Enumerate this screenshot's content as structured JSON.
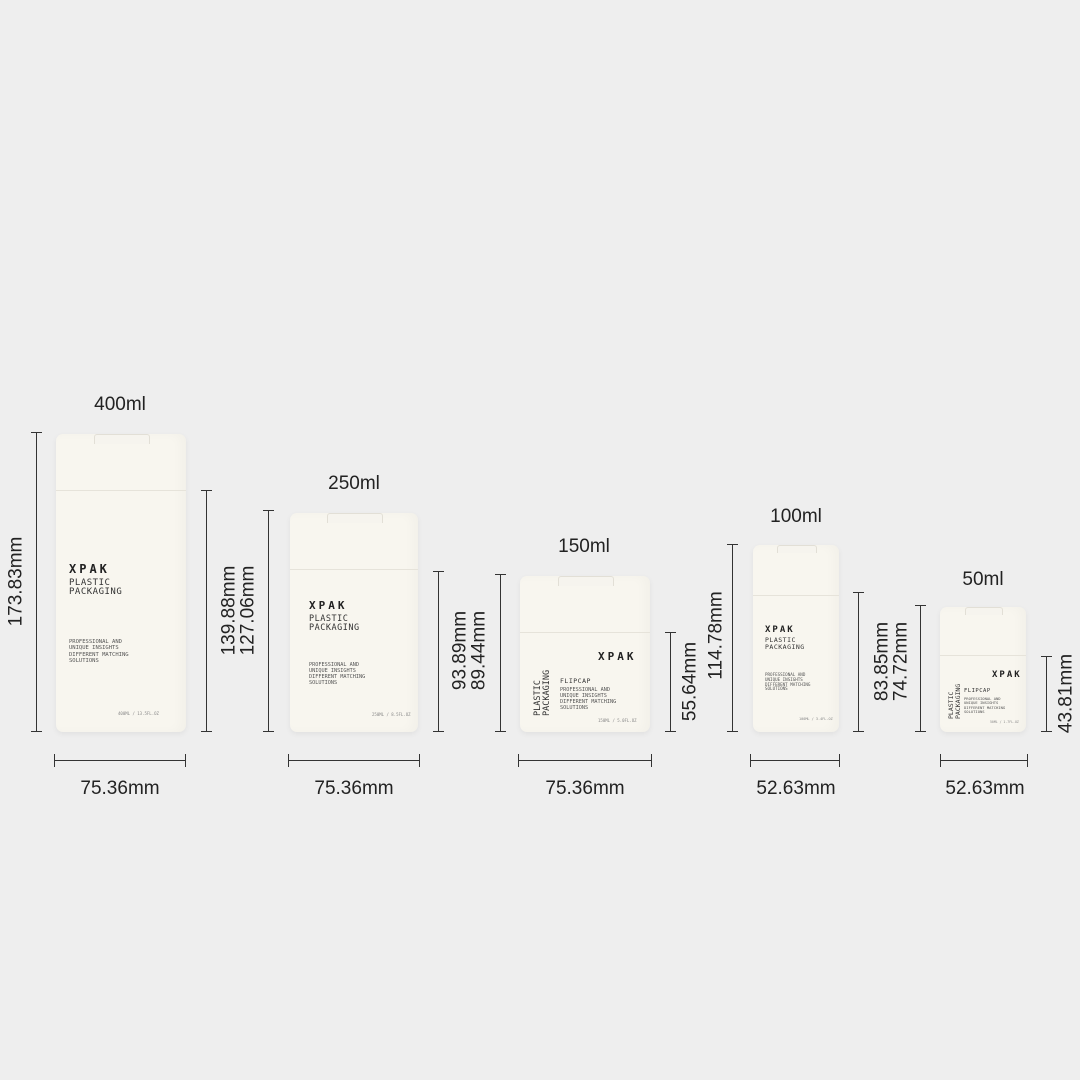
{
  "products": [
    {
      "capacity": "400ml",
      "width": "75.36mm",
      "total_height": "173.83mm",
      "body_height": "139.88mm",
      "brand": "XPAK",
      "line1": "PLASTIC",
      "line2": "PACKAGING",
      "desc": [
        "PROFESSIONAL AND",
        "UNIQUE INSIGHTS",
        "DIFFERENT MATCHING",
        "SOLUTIONS"
      ],
      "small": "400ML / 13.5FL.OZ"
    },
    {
      "capacity": "250ml",
      "width": "75.36mm",
      "total_height": "127.06mm",
      "body_height": "93.89mm",
      "brand": "XPAK",
      "line1": "PLASTIC",
      "line2": "PACKAGING",
      "desc": [
        "PROFESSIONAL AND",
        "UNIQUE INSIGHTS",
        "DIFFERENT MATCHING",
        "SOLUTIONS"
      ],
      "small": "250ML / 8.5FL.OZ"
    },
    {
      "capacity": "150ml",
      "width": "75.36mm",
      "total_height": "89.44mm",
      "body_height": "55.64mm",
      "brand": "XPAK",
      "side1": "PLASTIC",
      "side2": "PACKAGING",
      "flipcap": "FLIPCAP",
      "desc": [
        "PROFESSIONAL AND",
        "UNIQUE INSIGHTS",
        "DIFFERENT MATCHING",
        "SOLUTIONS"
      ],
      "small": "150ML / 5.0FL.OZ"
    },
    {
      "capacity": "100ml",
      "width": "52.63mm",
      "total_height": "114.78mm",
      "body_height": "83.85mm",
      "brand": "XPAK",
      "line1": "PLASTIC",
      "line2": "PACKAGING",
      "desc": [
        "PROFESSIONAL AND",
        "UNIQUE INSIGHTS",
        "DIFFERENT MATCHING",
        "SOLUTIONS"
      ],
      "small": "100ML / 3.4FL.OZ"
    },
    {
      "capacity": "50ml",
      "width": "52.63mm",
      "total_height": "74.72mm",
      "body_height": "43.81mm",
      "brand": "XPAK",
      "side1": "PLASTIC",
      "side2": "PACKAGING",
      "flipcap": "FLIPCAP",
      "desc": [
        "PROFESSIONAL AND",
        "UNIQUE INSIGHTS",
        "DIFFERENT MATCHING",
        "SOLUTIONS"
      ],
      "small": "50ML / 1.7FL.OZ"
    }
  ]
}
